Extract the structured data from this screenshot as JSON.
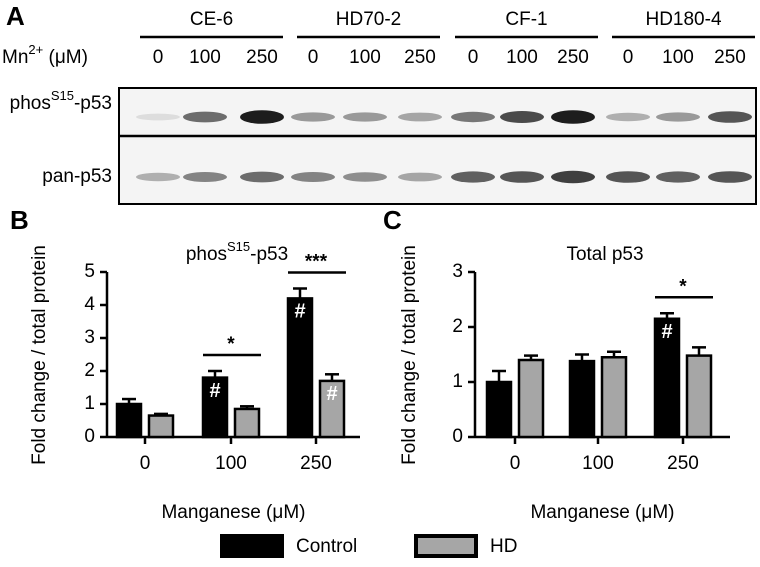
{
  "blot": {
    "letter": "A",
    "groups": [
      "CE-6",
      "HD70-2",
      "CF-1",
      "HD180-4"
    ],
    "doses": [
      "0",
      "100",
      "250"
    ],
    "dose_label": {
      "text": "Mn",
      "sup": "2+",
      "rest": " (μM)"
    },
    "rows": [
      {
        "text": "phos",
        "sup": "S15",
        "rest": "-p53"
      },
      {
        "text": "pan-p53"
      }
    ]
  },
  "legend": {
    "position": "bottom"
  },
  "chart_data": [
    {
      "type": "bar",
      "letter": "B",
      "title": {
        "text": "phos",
        "sup": "S15",
        "rest": "-p53"
      },
      "x_label": "Manganese (μM)",
      "y_label": "Fold change / total protein",
      "categories": [
        "0",
        "100",
        "250"
      ],
      "ylim": [
        0,
        5
      ],
      "yticks": [
        0,
        1,
        2,
        3,
        4,
        5
      ],
      "series": [
        {
          "name": "Control",
          "color": "#000000",
          "values": [
            1.0,
            1.8,
            4.2
          ],
          "errors": [
            0.15,
            0.2,
            0.3
          ]
        },
        {
          "name": "HD",
          "color": "#a6a6a6",
          "values": [
            0.65,
            0.85,
            1.7
          ],
          "errors": [
            0.05,
            0.08,
            0.2
          ]
        }
      ],
      "annotations": [
        {
          "text": "#",
          "series": 0,
          "category": 1
        },
        {
          "text": "#",
          "series": 0,
          "category": 2
        },
        {
          "text": "#",
          "series": 1,
          "category": 2
        }
      ],
      "significance": [
        {
          "text": "*",
          "category": 1
        },
        {
          "text": "***",
          "category": 2
        }
      ]
    },
    {
      "type": "bar",
      "letter": "C",
      "title": {
        "text": "Total p53"
      },
      "x_label": "Manganese (μM)",
      "y_label": "Fold change / total protein",
      "categories": [
        "0",
        "100",
        "250"
      ],
      "ylim": [
        0,
        3
      ],
      "yticks": [
        0,
        1,
        2,
        3
      ],
      "series": [
        {
          "color": "#000000",
          "values": [
            1.0,
            1.38,
            2.15
          ],
          "errors": [
            0.2,
            0.12,
            0.1
          ]
        },
        {
          "color": "#a6a6a6",
          "values": [
            1.4,
            1.45,
            1.48
          ],
          "errors": [
            0.08,
            0.1,
            0.15
          ]
        }
      ],
      "annotations": [
        {
          "text": "#",
          "series": 0,
          "category": 2
        }
      ],
      "significance": [
        {
          "text": "*",
          "category": 2
        }
      ]
    }
  ]
}
